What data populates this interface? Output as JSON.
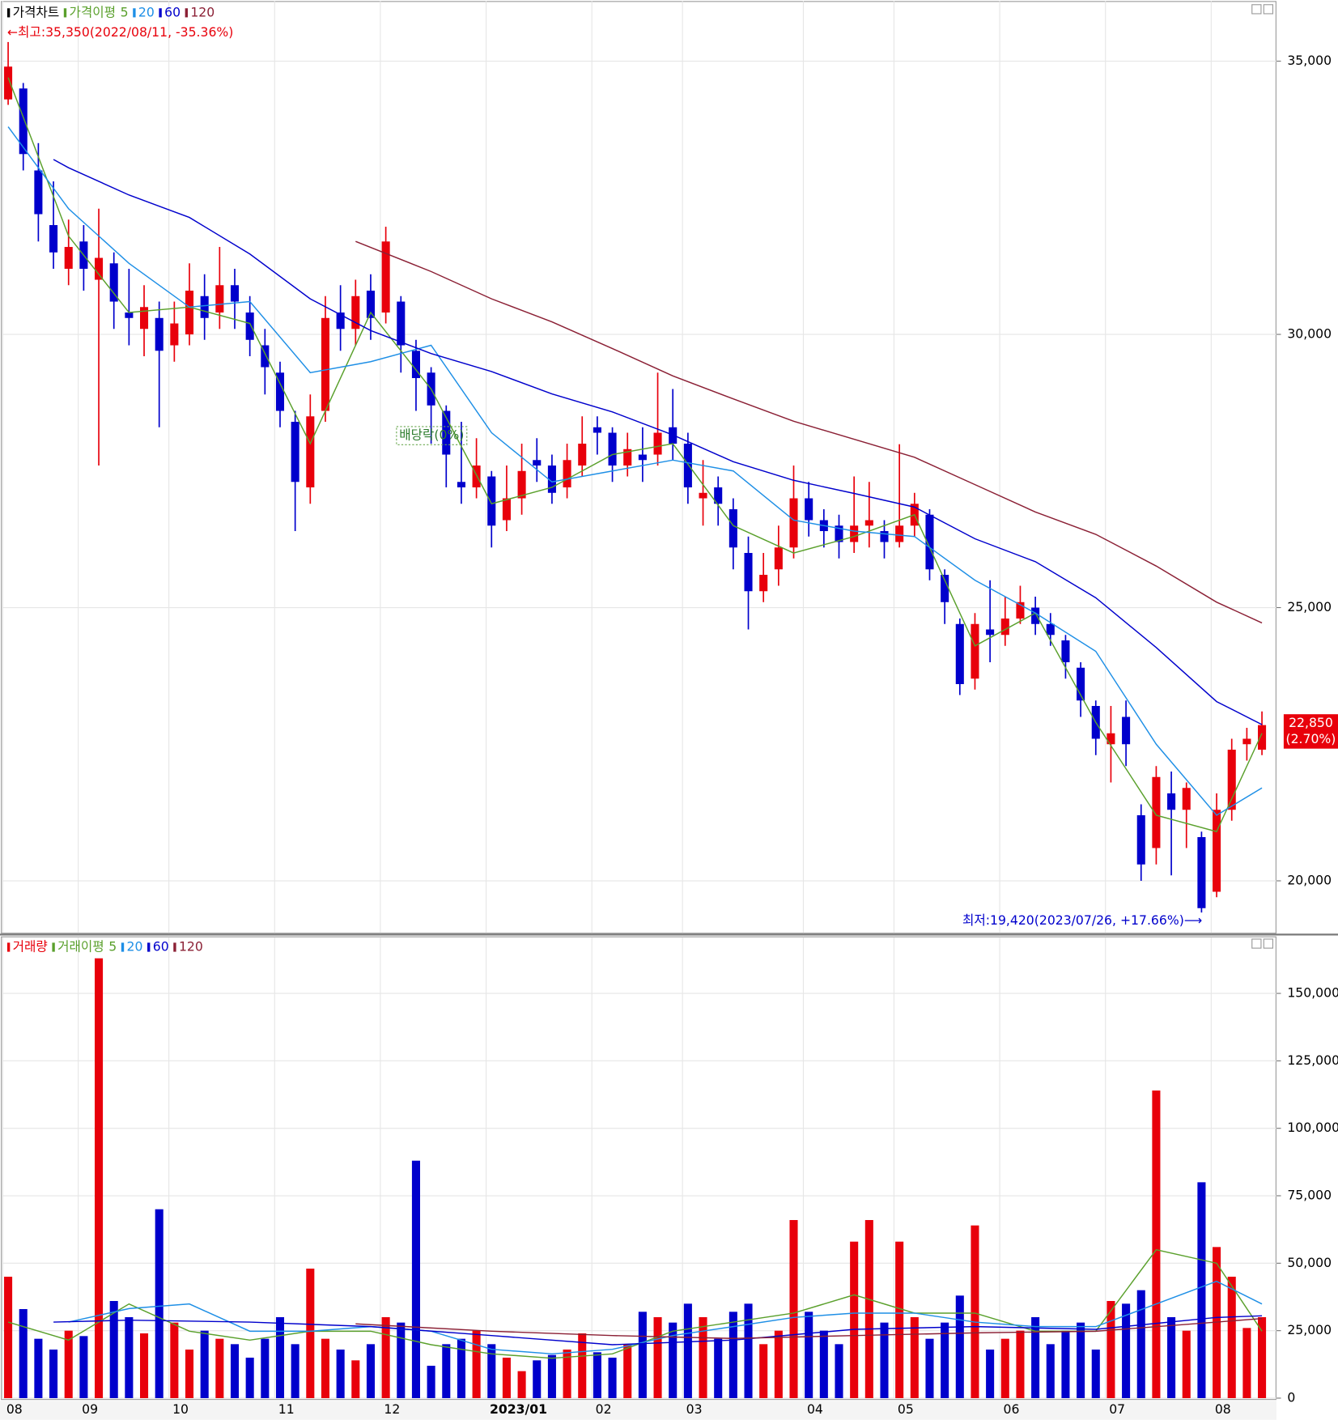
{
  "chart_data": [
    {
      "type": "candlestick",
      "name": "가격차트",
      "name_color": "#000000",
      "legend_title": "가격이평",
      "up_color": "#e8000b",
      "down_color": "#0000cc",
      "open": [
        34300,
        34500,
        33000,
        32000,
        31200,
        31700,
        31000,
        31300,
        30400,
        30100,
        30300,
        29800,
        30000,
        30700,
        30400,
        30900,
        30400,
        29800,
        29300,
        28400,
        27200,
        28600,
        30400,
        30100,
        30800,
        30400,
        30600,
        29700,
        29300,
        28600,
        27300,
        27200,
        27400,
        26600,
        27000,
        27700,
        27600,
        27200,
        27600,
        28300,
        28200,
        27600,
        27800,
        27800,
        28300,
        28000,
        27000,
        27200,
        26800,
        26000,
        25300,
        25700,
        26100,
        27000,
        26600,
        26500,
        26200,
        26500,
        26400,
        26200,
        26500,
        26700,
        25600,
        24700,
        23700,
        24600,
        24500,
        24800,
        25000,
        24700,
        24400,
        23900,
        23200,
        22500,
        23000,
        21200,
        20600,
        21600,
        21300,
        20800,
        19800,
        21300,
        22500,
        22400
      ],
      "high": [
        35350,
        34600,
        33500,
        32800,
        32100,
        32000,
        32300,
        31500,
        31200,
        30900,
        30600,
        30600,
        31300,
        31100,
        31600,
        31200,
        30700,
        30100,
        29500,
        28600,
        28900,
        30700,
        30900,
        31000,
        31100,
        31970,
        30700,
        29900,
        29400,
        28700,
        28400,
        28100,
        27500,
        27600,
        28000,
        28100,
        27800,
        28000,
        28500,
        28500,
        28300,
        28200,
        28300,
        29300,
        29000,
        28200,
        27700,
        27400,
        27000,
        26300,
        26000,
        26500,
        27600,
        27300,
        26800,
        26700,
        27400,
        27300,
        26600,
        27990,
        27100,
        26800,
        25700,
        24800,
        24900,
        25500,
        25200,
        25400,
        25200,
        24900,
        24500,
        24000,
        23300,
        23200,
        23300,
        21400,
        22100,
        22000,
        21800,
        20900,
        21600,
        22600,
        22800,
        23100
      ],
      "low": [
        34200,
        33000,
        31700,
        31200,
        30900,
        30800,
        27600,
        30100,
        29800,
        29600,
        28300,
        29500,
        29800,
        29900,
        30100,
        30100,
        29600,
        28900,
        28300,
        26400,
        26900,
        28400,
        29700,
        29800,
        29900,
        30200,
        29300,
        28600,
        28000,
        27200,
        26900,
        27000,
        26100,
        26400,
        26700,
        27300,
        26900,
        27000,
        27400,
        27800,
        27300,
        27400,
        27300,
        27600,
        27700,
        26900,
        26500,
        26500,
        25700,
        24600,
        25100,
        25400,
        25900,
        26300,
        26100,
        25900,
        26000,
        26100,
        25900,
        26100,
        26300,
        25500,
        24700,
        23400,
        23500,
        24000,
        24300,
        24700,
        24500,
        24300,
        23700,
        23000,
        22300,
        21800,
        22100,
        20000,
        20300,
        20100,
        20600,
        19420,
        19700,
        21100,
        22200,
        22300
      ],
      "close": [
        34900,
        33300,
        32200,
        31500,
        31600,
        31200,
        31400,
        30600,
        30300,
        30500,
        29700,
        30200,
        30800,
        30300,
        30900,
        30600,
        29900,
        29400,
        28600,
        27300,
        28500,
        30300,
        30100,
        30700,
        30300,
        31700,
        29800,
        29200,
        28700,
        27800,
        27200,
        27600,
        26500,
        27000,
        27500,
        27600,
        27100,
        27700,
        28000,
        28200,
        27600,
        27900,
        27700,
        28200,
        28000,
        27200,
        27100,
        26900,
        26100,
        25300,
        25600,
        26100,
        27000,
        26600,
        26400,
        26200,
        26500,
        26600,
        26200,
        26500,
        26900,
        25700,
        25100,
        23600,
        24700,
        24500,
        24800,
        25100,
        24700,
        24500,
        24000,
        23300,
        22600,
        22700,
        22500,
        20300,
        21900,
        21300,
        21700,
        19500,
        21300,
        22400,
        22600,
        22850
      ],
      "series": [
        {
          "name": "5",
          "color": "#5aa02c",
          "x": [
            0,
            4,
            8,
            12,
            16,
            20,
            24,
            28,
            32,
            36,
            40,
            44,
            48,
            52,
            56,
            60,
            64,
            68,
            72,
            76,
            80,
            83
          ],
          "values": [
            34700,
            31800,
            30400,
            30500,
            30200,
            28000,
            30400,
            29000,
            26900,
            27200,
            27800,
            28000,
            26500,
            26000,
            26300,
            26700,
            24300,
            24900,
            22900,
            21200,
            20900,
            22700
          ]
        },
        {
          "name": "20",
          "color": "#1e8fe6",
          "x": [
            0,
            4,
            8,
            12,
            16,
            20,
            24,
            28,
            32,
            36,
            40,
            44,
            48,
            52,
            56,
            60,
            64,
            68,
            72,
            76,
            80,
            83
          ],
          "values": [
            33800,
            32300,
            31300,
            30500,
            30600,
            29300,
            29500,
            29800,
            28200,
            27300,
            27500,
            27700,
            27500,
            26600,
            26400,
            26300,
            25500,
            24900,
            24200,
            22500,
            21200,
            21700
          ]
        },
        {
          "name": "60",
          "color": "#0000cc",
          "x": [
            3,
            4,
            8,
            12,
            16,
            20,
            24,
            28,
            32,
            36,
            40,
            44,
            48,
            52,
            56,
            60,
            64,
            68,
            72,
            76,
            80,
            83
          ],
          "values": [
            33200,
            33050,
            32550,
            32140,
            31470,
            30650,
            30070,
            29650,
            29320,
            28910,
            28580,
            28160,
            27670,
            27330,
            27090,
            26840,
            26260,
            25840,
            25180,
            24270,
            23280,
            22860
          ]
        },
        {
          "name": "120",
          "color": "#8b2035",
          "x": [
            23,
            28,
            32,
            36,
            40,
            44,
            48,
            52,
            56,
            60,
            64,
            68,
            72,
            76,
            80,
            83
          ],
          "values": [
            31700,
            31150,
            30650,
            30230,
            29740,
            29240,
            28820,
            28410,
            28080,
            27750,
            27250,
            26750,
            26340,
            25760,
            25100,
            24720
          ]
        }
      ],
      "ylim": [
        19050,
        36100
      ],
      "yticks": [
        {
          "value": 20000,
          "label": "20,000"
        },
        {
          "value": 25000,
          "label": "25,000"
        },
        {
          "value": 30000,
          "label": "30,000"
        },
        {
          "value": 35000,
          "label": "35,000"
        }
      ],
      "grid": true,
      "annotations": {
        "high": "←최고:35,350(2022/08/11, -35.36%)",
        "low": "최저:19,420(2023/07/26, +17.66%)⟶",
        "ex_dividend": "배당락(0%)"
      },
      "last_price_label": "22,850",
      "last_change_label": "(2.70%)"
    },
    {
      "type": "bar",
      "name": "거래량",
      "name_color": "#e8000b",
      "legend_title": "거래이평",
      "categories": [
        "08",
        null,
        null,
        null,
        null,
        "09",
        null,
        null,
        null,
        null,
        null,
        "10",
        null,
        null,
        null,
        null,
        null,
        null,
        "11",
        null,
        null,
        null,
        null,
        null,
        null,
        "12",
        null,
        null,
        null,
        null,
        null,
        null,
        "2023/01",
        null,
        null,
        null,
        null,
        null,
        null,
        "02",
        null,
        null,
        null,
        null,
        null,
        "03",
        null,
        null,
        null,
        null,
        null,
        null,
        null,
        "04",
        null,
        null,
        null,
        null,
        null,
        "05",
        null,
        null,
        null,
        null,
        null,
        null,
        "06",
        null,
        null,
        null,
        null,
        null,
        null,
        "07",
        null,
        null,
        null,
        null,
        null,
        null,
        "08",
        null,
        null,
        null
      ],
      "values": [
        45000,
        33000,
        22000,
        18000,
        25000,
        23000,
        163000,
        36000,
        30000,
        24000,
        70000,
        28000,
        18000,
        25000,
        22000,
        20000,
        15000,
        22000,
        30000,
        20000,
        48000,
        22000,
        18000,
        14000,
        20000,
        30000,
        28000,
        88000,
        12000,
        20000,
        22000,
        25000,
        20000,
        15000,
        10000,
        14000,
        16000,
        18000,
        24000,
        17000,
        15000,
        20000,
        32000,
        30000,
        28000,
        35000,
        30000,
        22000,
        32000,
        35000,
        20000,
        25000,
        66000,
        32000,
        25000,
        20000,
        58000,
        66000,
        28000,
        58000,
        30000,
        22000,
        28000,
        38000,
        64000,
        18000,
        22000,
        25000,
        30000,
        20000,
        25000,
        28000,
        18000,
        36000,
        35000,
        40000,
        114000,
        30000,
        25000,
        80000,
        56000,
        45000,
        26000,
        30000
      ],
      "series": [
        {
          "name": "5",
          "color": "#5aa02c",
          "x": [
            0,
            4,
            8,
            12,
            16,
            20,
            24,
            28,
            32,
            36,
            40,
            44,
            48,
            52,
            56,
            60,
            64,
            68,
            72,
            76,
            80,
            83
          ],
          "values": [
            28200,
            21500,
            34900,
            24800,
            21500,
            24800,
            24800,
            19800,
            16400,
            14800,
            16400,
            24800,
            28200,
            31500,
            38300,
            31500,
            31500,
            24800,
            24800,
            55000,
            50000,
            24800
          ]
        },
        {
          "name": "20",
          "color": "#1e8fe6",
          "x": [
            4,
            8,
            12,
            16,
            20,
            24,
            28,
            32,
            36,
            40,
            44,
            48,
            52,
            56,
            60,
            64,
            68,
            72,
            76,
            80,
            83
          ],
          "values": [
            28200,
            33200,
            34900,
            24800,
            24800,
            26500,
            24800,
            18100,
            16400,
            18100,
            23200,
            26500,
            29900,
            31500,
            31500,
            28200,
            26500,
            26500,
            34900,
            43300,
            34900
          ]
        },
        {
          "name": "60",
          "color": "#0000cc",
          "x": [
            3,
            8,
            16,
            24,
            32,
            40,
            48,
            56,
            64,
            72,
            80,
            83
          ],
          "values": [
            28200,
            28900,
            28200,
            26500,
            23200,
            19800,
            21500,
            25500,
            26500,
            25500,
            29900,
            30500
          ]
        },
        {
          "name": "120",
          "color": "#8b2035",
          "x": [
            23,
            32,
            40,
            48,
            56,
            64,
            72,
            80,
            83
          ],
          "values": [
            27500,
            24800,
            23200,
            22100,
            23200,
            24200,
            24800,
            28200,
            29500
          ]
        }
      ],
      "ylim": [
        0,
        170800
      ],
      "yticks": [
        0,
        {
          "value": 25000,
          "label": "25,000"
        },
        {
          "value": 50000,
          "label": "50,000"
        },
        {
          "value": 75000,
          "label": "75,000"
        },
        {
          "value": 100000,
          "label": "100,000"
        },
        {
          "value": 125000,
          "label": "125,000"
        },
        {
          "value": 150000,
          "label": "150,000"
        }
      ],
      "grid": true
    }
  ]
}
